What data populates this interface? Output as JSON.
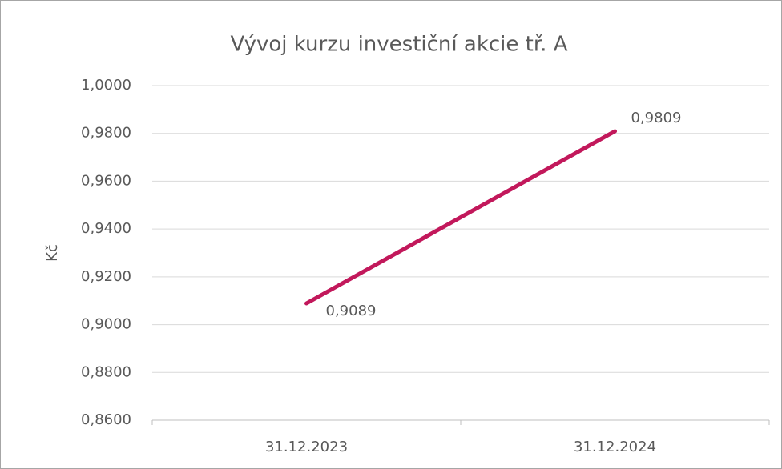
{
  "chart_data": {
    "type": "line",
    "title": "Vývoj kurzu investiční akcie tř. A",
    "y_label": "Kč",
    "categories": [
      "31.12.2023",
      "31.12.2024"
    ],
    "values": [
      0.9089,
      0.9809
    ],
    "value_labels": [
      "0,9089",
      "0,9809"
    ],
    "color": "#c2185b",
    "ylim": [
      0.86,
      1.0
    ],
    "yticks": [
      {
        "value": 0.86,
        "label": "0,8600"
      },
      {
        "value": 0.88,
        "label": "0,8800"
      },
      {
        "value": 0.9,
        "label": "0,9000"
      },
      {
        "value": 0.92,
        "label": "0,9200"
      },
      {
        "value": 0.94,
        "label": "0,9400"
      },
      {
        "value": 0.96,
        "label": "0,9600"
      },
      {
        "value": 0.98,
        "label": "0,9800"
      },
      {
        "value": 1.0,
        "label": "1,0000"
      }
    ],
    "grid": true
  }
}
